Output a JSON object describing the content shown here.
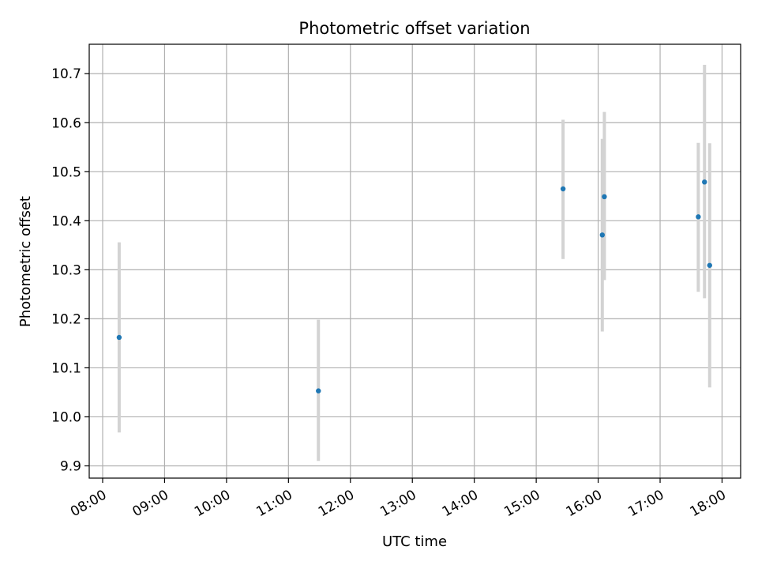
{
  "chart_data": {
    "type": "scatter",
    "title": "Photometric offset variation",
    "xlabel": "UTC time",
    "ylabel": "Photometric offset",
    "x_tick_labels": [
      "08:00",
      "09:00",
      "10:00",
      "11:00",
      "12:00",
      "13:00",
      "14:00",
      "15:00",
      "16:00",
      "17:00",
      "18:00"
    ],
    "y_ticks": [
      9.9,
      10.0,
      10.1,
      10.2,
      10.3,
      10.4,
      10.5,
      10.6,
      10.7
    ],
    "y_tick_labels": [
      "9.9",
      "10.0",
      "10.1",
      "10.2",
      "10.3",
      "10.4",
      "10.5",
      "10.6",
      "10.7"
    ],
    "xlim": [
      "07:47",
      "18:18"
    ],
    "ylim": [
      9.875,
      10.76
    ],
    "grid": true,
    "colors": {
      "point": "#1f77b4",
      "errorbar": "#d3d3d3",
      "grid": "#b0b0b0"
    },
    "points": [
      {
        "x": "08:16",
        "y": 10.162,
        "ylow": 9.968,
        "yhigh": 10.356
      },
      {
        "x": "11:29",
        "y": 10.053,
        "ylow": 9.91,
        "yhigh": 10.198
      },
      {
        "x": "15:26",
        "y": 10.465,
        "ylow": 10.322,
        "yhigh": 10.606
      },
      {
        "x": "16:04",
        "y": 10.371,
        "ylow": 10.174,
        "yhigh": 10.567
      },
      {
        "x": "16:06",
        "y": 10.449,
        "ylow": 10.279,
        "yhigh": 10.622
      },
      {
        "x": "17:37",
        "y": 10.408,
        "ylow": 10.255,
        "yhigh": 10.559
      },
      {
        "x": "17:43",
        "y": 10.479,
        "ylow": 10.242,
        "yhigh": 10.718
      },
      {
        "x": "17:48",
        "y": 10.309,
        "ylow": 10.06,
        "yhigh": 10.558
      }
    ]
  }
}
